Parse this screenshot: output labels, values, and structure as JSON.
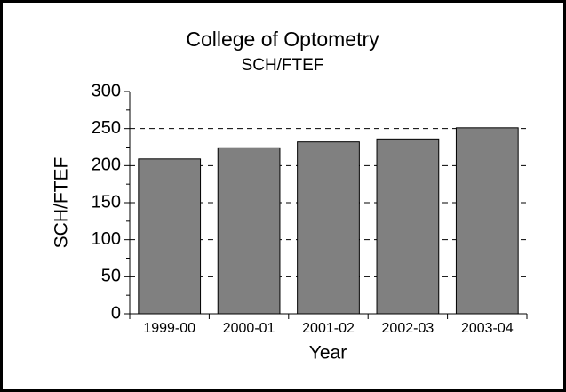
{
  "chart_data": {
    "type": "bar",
    "title": "College of Optometry",
    "subtitle": "SCH/FTEF",
    "x_label": "Year",
    "y_label": "SCH/FTEF",
    "categories": [
      "1999-00",
      "2000-01",
      "2001-02",
      "2002-03",
      "2003-04"
    ],
    "values": [
      209,
      224,
      232,
      236,
      251
    ],
    "color": "#808080",
    "ylim": [
      0,
      300
    ],
    "yticks": [
      0,
      50,
      100,
      150,
      200,
      250,
      300
    ],
    "grid": true
  }
}
